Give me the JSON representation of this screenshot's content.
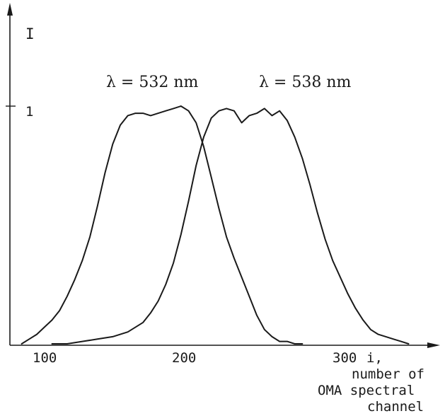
{
  "chart_data": {
    "type": "line",
    "ylabel": "I",
    "xlabel_lines": [
      "i,",
      "number of",
      "OMA spectral",
      "channel"
    ],
    "x_ticks": [
      "100",
      "200",
      "300"
    ],
    "y_ticks": [
      "1"
    ],
    "xlim": [
      90,
      350
    ],
    "ylim": [
      0,
      1.3
    ],
    "series": [
      {
        "name": "λ = 532 nm",
        "x": [
          90,
          95,
          100,
          105,
          110,
          115,
          120,
          125,
          130,
          135,
          140,
          145,
          150,
          155,
          160,
          165,
          170,
          175,
          180,
          185,
          190,
          195,
          200,
          205,
          210,
          215,
          220,
          225,
          230,
          235,
          240,
          245,
          250,
          255,
          260,
          265,
          270,
          275
        ],
        "y": [
          0.0,
          0.02,
          0.04,
          0.07,
          0.1,
          0.14,
          0.2,
          0.27,
          0.35,
          0.45,
          0.58,
          0.72,
          0.84,
          0.92,
          0.96,
          0.97,
          0.97,
          0.96,
          0.97,
          0.98,
          0.99,
          1.0,
          0.98,
          0.93,
          0.83,
          0.7,
          0.57,
          0.45,
          0.36,
          0.28,
          0.2,
          0.12,
          0.06,
          0.03,
          0.01,
          0.01,
          0.0,
          0.0
        ]
      },
      {
        "name": "λ = 538 nm",
        "x": [
          110,
          120,
          130,
          140,
          150,
          160,
          170,
          175,
          180,
          185,
          190,
          195,
          200,
          205,
          210,
          215,
          220,
          225,
          230,
          235,
          240,
          245,
          250,
          255,
          260,
          265,
          270,
          275,
          280,
          285,
          290,
          295,
          300,
          305,
          310,
          315,
          320,
          325,
          330,
          335,
          340,
          345
        ],
        "y": [
          0.0,
          0.0,
          0.01,
          0.02,
          0.03,
          0.05,
          0.09,
          0.13,
          0.18,
          0.25,
          0.34,
          0.46,
          0.6,
          0.75,
          0.87,
          0.95,
          0.98,
          0.99,
          0.98,
          0.93,
          0.96,
          0.97,
          0.99,
          0.96,
          0.98,
          0.94,
          0.87,
          0.78,
          0.67,
          0.55,
          0.44,
          0.35,
          0.28,
          0.21,
          0.15,
          0.1,
          0.06,
          0.04,
          0.03,
          0.02,
          0.01,
          0.0
        ]
      }
    ]
  }
}
